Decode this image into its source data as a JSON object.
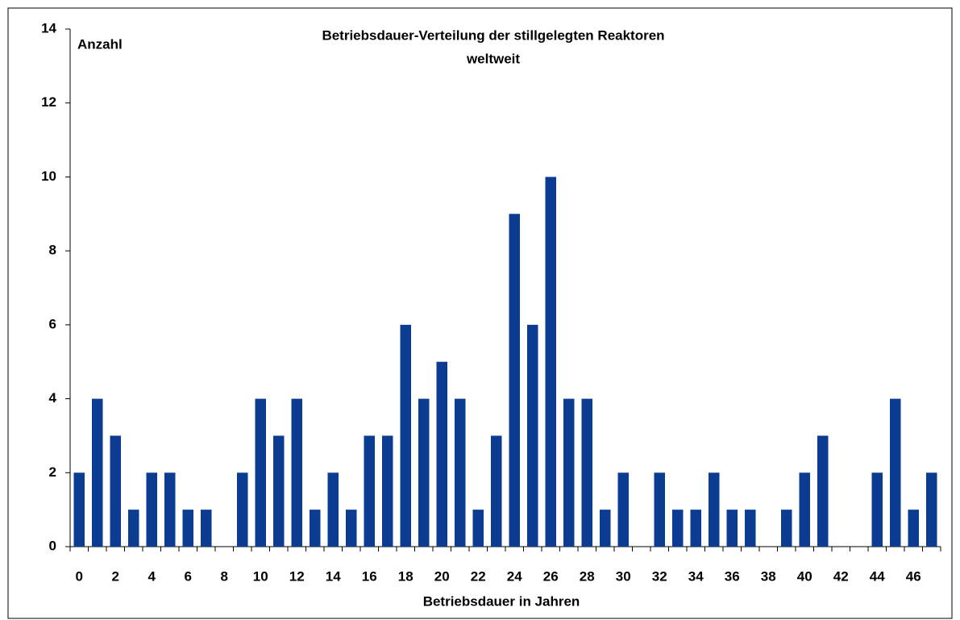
{
  "chart_data": {
    "type": "bar",
    "title": [
      "Betriebsdauer-Verteilung der stillgelegten Reaktoren",
      "weltweit"
    ],
    "ylabel": "Anzahl",
    "xlabel": "Betriebsdauer in Jahren",
    "categories": [
      "0",
      null,
      "2",
      null,
      "4",
      null,
      "6",
      null,
      "8",
      null,
      "10",
      null,
      "12",
      null,
      "14",
      null,
      "16",
      null,
      "18",
      null,
      "20",
      null,
      "22",
      null,
      "24",
      null,
      "26",
      null,
      "28",
      null,
      "30",
      null,
      "32",
      null,
      "34",
      null,
      "36",
      null,
      "38",
      null,
      "40",
      null,
      "42",
      null,
      "44",
      null,
      "46",
      null
    ],
    "values": [
      2,
      4,
      3,
      1,
      2,
      2,
      1,
      1,
      0,
      2,
      4,
      3,
      4,
      1,
      2,
      1,
      3,
      3,
      6,
      4,
      5,
      4,
      1,
      3,
      9,
      6,
      10,
      4,
      4,
      1,
      2,
      0,
      2,
      1,
      1,
      2,
      1,
      1,
      0,
      1,
      2,
      3,
      0,
      0,
      2,
      4,
      1,
      2
    ],
    "color": "#0b3c91",
    "ylim": [
      0,
      14
    ],
    "yticks": [
      0,
      2,
      4,
      6,
      8,
      10,
      12,
      14
    ],
    "grid": false
  }
}
